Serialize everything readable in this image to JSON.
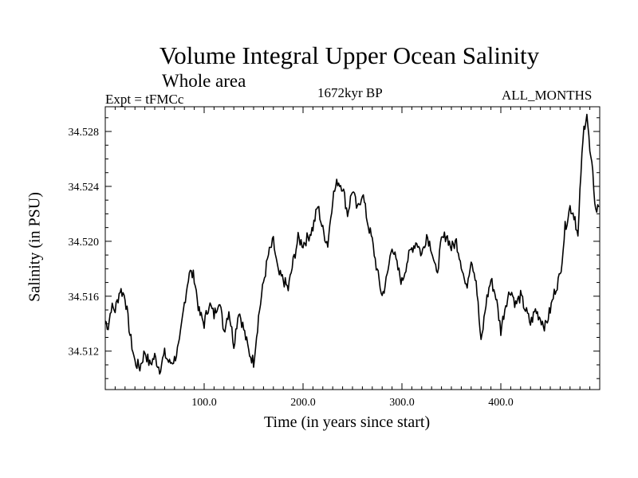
{
  "header": {
    "title": "Volume Integral Upper Ocean Salinity",
    "subtitle": "Whole area",
    "experiment": "Expt = tFMCc",
    "period": "1672kyr BP",
    "months": "ALL_MONTHS"
  },
  "chart_data": {
    "type": "line",
    "title": "Volume Integral Upper Ocean Salinity",
    "subtitle": "Whole area",
    "xlabel": "Time (in years since start)",
    "ylabel": "Salinity (in PSU)",
    "xlim": [
      0,
      500
    ],
    "ylim": [
      34.5092,
      34.5298
    ],
    "xticks": [
      100,
      200,
      300,
      400
    ],
    "xtick_labels": [
      "100.0",
      "200.0",
      "300.0",
      "400.0"
    ],
    "yticks": [
      34.512,
      34.516,
      34.52,
      34.524,
      34.528
    ],
    "ytick_labels": [
      "34.512",
      "34.516",
      "34.520",
      "34.524",
      "34.528"
    ],
    "grid": false,
    "series": [
      {
        "name": "Salinity",
        "color": "#000000",
        "x": [
          0,
          3,
          6,
          10,
          15,
          20,
          25,
          30,
          35,
          40,
          45,
          50,
          55,
          60,
          65,
          70,
          75,
          80,
          85,
          90,
          95,
          100,
          105,
          110,
          115,
          120,
          125,
          130,
          135,
          140,
          145,
          150,
          155,
          160,
          165,
          170,
          175,
          180,
          185,
          190,
          195,
          200,
          205,
          210,
          215,
          220,
          225,
          230,
          235,
          240,
          245,
          250,
          255,
          260,
          265,
          270,
          275,
          280,
          285,
          290,
          295,
          300,
          305,
          310,
          315,
          320,
          325,
          330,
          335,
          340,
          345,
          350,
          355,
          360,
          365,
          370,
          375,
          380,
          385,
          390,
          395,
          400,
          405,
          410,
          415,
          420,
          425,
          430,
          435,
          440,
          445,
          450,
          455,
          460,
          465,
          470,
          475,
          478,
          481,
          484,
          487,
          490,
          493,
          496,
          499
        ],
        "values": [
          34.5142,
          34.5138,
          34.5152,
          34.515,
          34.5165,
          34.516,
          34.5132,
          34.5112,
          34.5108,
          34.512,
          34.511,
          34.5116,
          34.5107,
          34.5118,
          34.5111,
          34.5114,
          34.5125,
          34.5155,
          34.5178,
          34.5174,
          34.5148,
          34.514,
          34.5155,
          34.5146,
          34.5158,
          34.5135,
          34.515,
          34.5125,
          34.515,
          34.5136,
          34.512,
          34.5112,
          34.5145,
          34.517,
          34.519,
          34.52,
          34.5176,
          34.5172,
          34.5165,
          34.5185,
          34.5202,
          34.5198,
          34.5203,
          34.521,
          34.5226,
          34.5208,
          34.5198,
          34.5232,
          34.5244,
          34.524,
          34.522,
          34.5238,
          34.5222,
          34.5236,
          34.5215,
          34.52,
          34.5178,
          34.516,
          34.5174,
          34.5198,
          34.5182,
          34.517,
          34.5185,
          34.5195,
          34.52,
          34.519,
          34.5205,
          34.5195,
          34.5175,
          34.52,
          34.5205,
          34.5195,
          34.52,
          34.5184,
          34.5165,
          34.5188,
          34.5172,
          34.5125,
          34.5155,
          34.5172,
          34.516,
          34.5135,
          34.5155,
          34.5165,
          34.5154,
          34.516,
          34.515,
          34.514,
          34.515,
          34.5144,
          34.5138,
          34.515,
          34.5165,
          34.5175,
          34.521,
          34.5225,
          34.5218,
          34.5202,
          34.525,
          34.5282,
          34.5294,
          34.5265,
          34.5248,
          34.5222,
          34.5225
        ]
      }
    ]
  }
}
